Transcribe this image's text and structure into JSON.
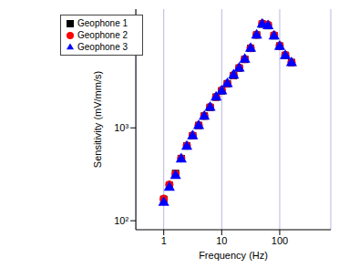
{
  "chart_data": {
    "type": "scatter",
    "x_label": "Frequency (Hz)",
    "y_label": "Sensitivity (mV/mm/s)",
    "log": true,
    "grid": true,
    "legend": "upper left",
    "x": [
      1,
      1.25,
      1.6,
      2,
      2.5,
      3.15,
      4,
      5,
      6.3,
      8,
      10,
      12.5,
      16,
      20,
      25,
      31.5,
      40,
      50,
      63,
      80,
      100,
      125,
      160
    ],
    "xlim": [
      0.33,
      760
    ],
    "xticks": [
      1,
      10,
      100
    ],
    "ylim": [
      80,
      19000
    ],
    "yticks": [
      {
        "value": 100,
        "label": "10²"
      },
      {
        "value": 1000,
        "label": "10³"
      }
    ],
    "series": [
      {
        "name": "Geophone 1",
        "color": "#000000",
        "marker": "square",
        "values": [
          170,
          240,
          323,
          467,
          638,
          822,
          1060,
          1340,
          1660,
          2140,
          2500,
          2990,
          3650,
          4400,
          5460,
          7180,
          10000,
          13100,
          12600,
          9800,
          7600,
          6030,
          5050
        ]
      },
      {
        "name": "Geophone 2",
        "color": "#ff0000",
        "marker": "circle",
        "values": [
          172,
          245,
          320,
          470,
          645,
          830,
          1070,
          1350,
          1680,
          2160,
          2550,
          3000,
          3700,
          4450,
          5500,
          7250,
          10100,
          13300,
          12900,
          10000,
          7700,
          6100,
          5100
        ]
      },
      {
        "name": "Geophone 3",
        "color": "#0000ff",
        "marker": "triangle",
        "values": [
          157,
          227,
          305,
          460,
          630,
          815,
          1050,
          1330,
          1650,
          2130,
          2480,
          2980,
          3680,
          4380,
          5450,
          7150,
          9900,
          13000,
          12500,
          9700,
          7500,
          5950,
          5000
        ]
      }
    ]
  }
}
